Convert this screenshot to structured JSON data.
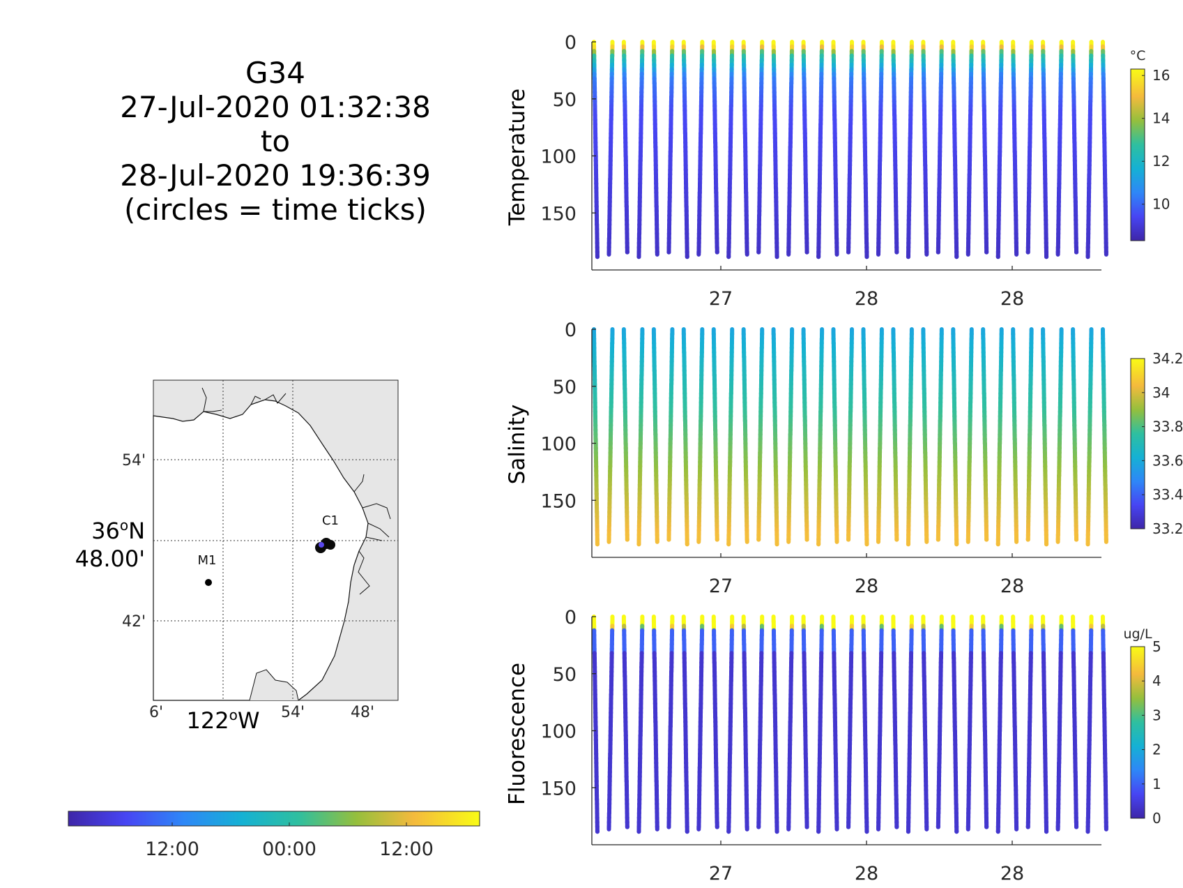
{
  "title": {
    "glider": "G34",
    "start": "27-Jul-2020 01:32:38",
    "to": "to",
    "end": "28-Jul-2020 19:36:39",
    "note": "(circles = time ticks)"
  },
  "map": {
    "lat_labels": [
      "54'",
      "42'"
    ],
    "lat_main": [
      "36",
      "o",
      "N",
      "48.00'"
    ],
    "lon_labels": [
      "6'",
      "54'",
      "48'"
    ],
    "lon_main": [
      "122",
      "o",
      "W"
    ],
    "stations": [
      {
        "name": "M1",
        "type": "mooring"
      },
      {
        "name": "C1",
        "type": "mooring"
      }
    ]
  },
  "time_colorbar": {
    "tick_labels": [
      "12:00",
      "00:00",
      "12:00"
    ],
    "colormap": "parula"
  },
  "chart_data": [
    {
      "type": "scatter",
      "ylabel": "Temperature",
      "ylim": [
        0,
        200
      ],
      "y_reversed": true,
      "yticks": [
        0,
        50,
        100,
        150
      ],
      "xtick_labels": [
        "27",
        "28",
        "28"
      ],
      "n_profiles": 35,
      "profile_max_depth_m": 188,
      "colorbar": {
        "unit": "°C",
        "range": [
          8.3,
          16.3
        ],
        "ticks": [
          10,
          12,
          14,
          16
        ]
      },
      "profile_model": "warm surface ~16 °C, thermocline in the upper 30 m, ~9 °C at depth"
    },
    {
      "type": "scatter",
      "ylabel": "Salinity",
      "ylim": [
        0,
        200
      ],
      "y_reversed": true,
      "yticks": [
        0,
        50,
        100,
        150
      ],
      "xtick_labels": [
        "27",
        "28",
        "28"
      ],
      "n_profiles": 35,
      "profile_max_depth_m": 188,
      "colorbar": {
        "unit": "",
        "range": [
          33.2,
          34.2
        ],
        "ticks": [
          33.2,
          33.4,
          33.6,
          33.8,
          34,
          34.2
        ]
      },
      "profile_model": "~33.6 at surface increasing to ~34.05 near 180 m"
    },
    {
      "type": "scatter",
      "ylabel": "Fluorescence",
      "ylim": [
        0,
        200
      ],
      "y_reversed": true,
      "yticks": [
        0,
        50,
        100,
        150
      ],
      "xtick_labels": [
        "27",
        "28",
        "28"
      ],
      "n_profiles": 35,
      "profile_max_depth_m": 188,
      "colorbar": {
        "unit": "ug/L",
        "range": [
          0,
          5
        ],
        "ticks": [
          0,
          1,
          2,
          3,
          4,
          5
        ]
      },
      "profile_model": "~5 ug/L in top 10 m, ~1 ug/L to 30 m, ~0.3 ug/L below"
    }
  ]
}
